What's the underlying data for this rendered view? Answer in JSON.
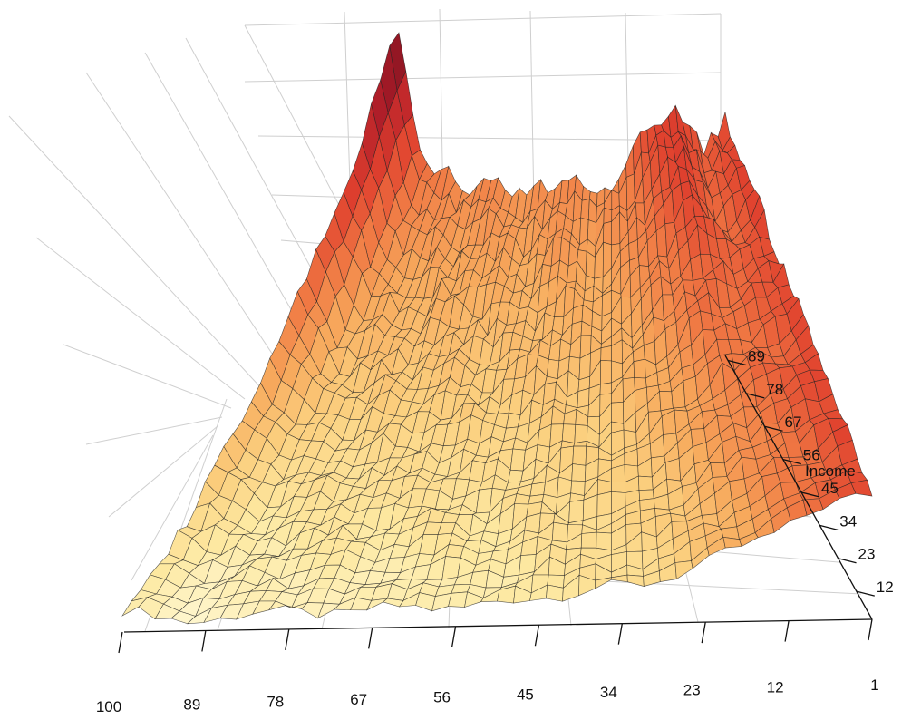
{
  "chart_data": {
    "type": "surface3d",
    "title": "",
    "x_axis": {
      "label": "",
      "ticks": [
        "100",
        "89",
        "78",
        "67",
        "56",
        "45",
        "34",
        "23",
        "12",
        "1"
      ]
    },
    "y_axis": {
      "label": "Income",
      "ticks": [
        "89",
        "78",
        "67",
        "56",
        "45",
        "34",
        "23",
        "12"
      ]
    },
    "z_axis": {
      "label": "",
      "ticks": []
    },
    "grid": true,
    "colormap": [
      "#fffbe0",
      "#fde9a2",
      "#fbcf7e",
      "#f7a95c",
      "#f07a44",
      "#e0412e",
      "#b51f2a",
      "#7a1020"
    ],
    "surface": {
      "description_levels": "relative height of the surface along the Income axis (left back ridge and right ridge are the peaks)",
      "back_edge_profile": [
        1.0,
        0.62,
        0.55,
        0.52,
        0.54,
        0.5,
        0.52,
        0.55,
        0.5,
        0.58,
        0.7,
        0.78,
        0.62,
        0.72
      ],
      "front_edge_profile": [
        0.12,
        0.05,
        0.08,
        0.1,
        0.08,
        0.12,
        0.1,
        0.15,
        0.18,
        0.22,
        0.3,
        0.45,
        0.6,
        0.7
      ]
    }
  }
}
